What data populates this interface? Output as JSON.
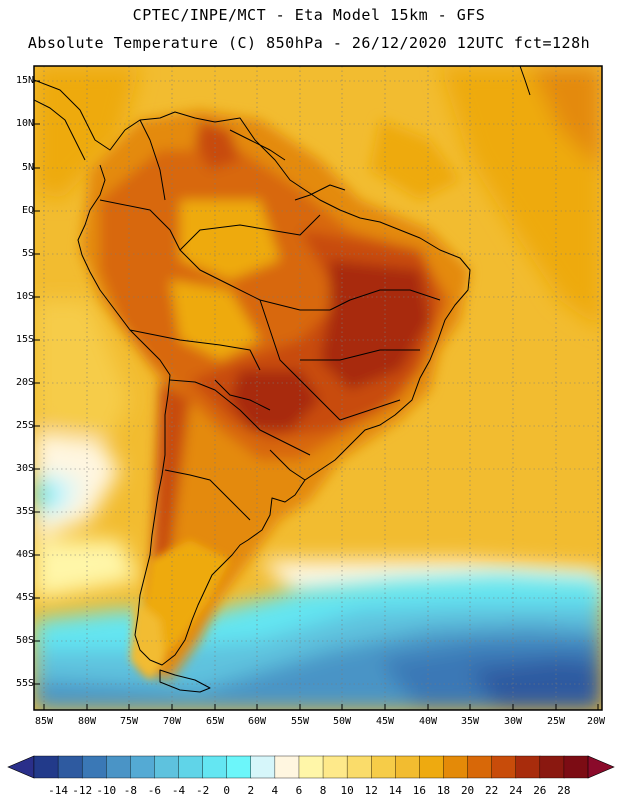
{
  "header": {
    "title_line1": "CPTEC/INPE/MCT -  Eta Model 15km - GFS",
    "title_line2": "Absolute Temperature (C) 850hPa - 26/12/2020 12UTC fct=128h"
  },
  "map": {
    "lat_labels": [
      "15N",
      "10N",
      "5N",
      "EQ",
      "5S",
      "10S",
      "15S",
      "20S",
      "25S",
      "30S",
      "35S",
      "40S",
      "45S",
      "50S",
      "55S"
    ],
    "lon_labels": [
      "85W",
      "80W",
      "75W",
      "70W",
      "65W",
      "60W",
      "55W",
      "50W",
      "45W",
      "40W",
      "35W",
      "30W",
      "25W",
      "20W"
    ]
  },
  "colorbar": {
    "tick_labels": [
      "-14",
      "-12",
      "-10",
      "-8",
      "-6",
      "-4",
      "-2",
      "0",
      "2",
      "4",
      "6",
      "8",
      "10",
      "12",
      "14",
      "16",
      "18",
      "20",
      "22",
      "24",
      "26",
      "28"
    ],
    "colors": [
      "#223a8a",
      "#2e5aa0",
      "#3a78b6",
      "#4a94c6",
      "#54aad4",
      "#5ec2de",
      "#60d4e8",
      "#64e6f2",
      "#6cf6fa",
      "#d6f6fa",
      "#fff6e0",
      "#fff6a8",
      "#fee98a",
      "#fadc6a",
      "#f6cc48",
      "#f2bc30",
      "#eeaa10",
      "#e48a08",
      "#d86808",
      "#c84c0a",
      "#a82c0c",
      "#8a1810",
      "#7c0c14"
    ],
    "under_color": "#2a2f8a",
    "over_color": "#8a0a2a"
  }
}
